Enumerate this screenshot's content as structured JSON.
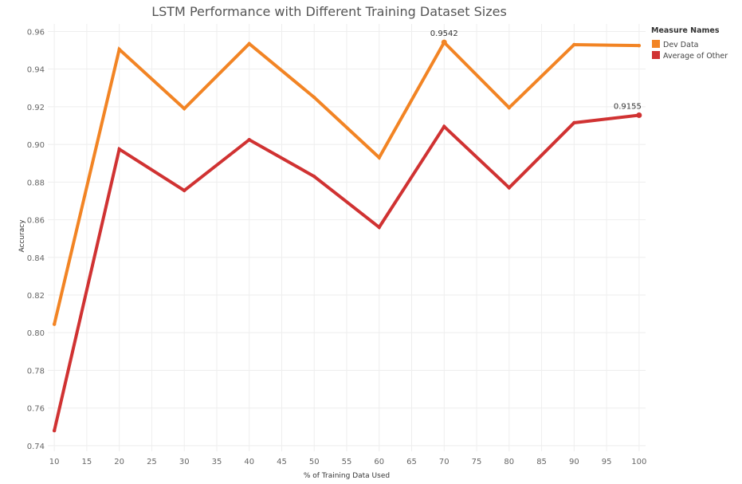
{
  "chart_data": {
    "type": "line",
    "title": "LSTM Performance with Different Training Dataset Sizes",
    "xlabel": "% of Training Data Used",
    "ylabel": "Accuracy",
    "x": [
      10,
      20,
      30,
      40,
      50,
      60,
      70,
      80,
      90,
      100
    ],
    "x_ticks": [
      10,
      15,
      20,
      25,
      30,
      35,
      40,
      45,
      50,
      55,
      60,
      65,
      70,
      75,
      80,
      85,
      90,
      95,
      100
    ],
    "xlim": [
      9,
      101
    ],
    "y_ticks": [
      "0.74",
      "0.76",
      "0.78",
      "0.80",
      "0.82",
      "0.84",
      "0.86",
      "0.88",
      "0.90",
      "0.92",
      "0.94",
      "0.96"
    ],
    "ylim": [
      0.737,
      0.964
    ],
    "grid": true,
    "legend": {
      "title": "Measure Names",
      "placement": "top-right",
      "entries": [
        "Dev Data",
        "Average of Other"
      ]
    },
    "series": [
      {
        "name": "Dev Data",
        "color": "#f28424",
        "values": [
          0.8045,
          0.9505,
          0.919,
          0.9535,
          0.925,
          0.893,
          0.9542,
          0.9195,
          0.953,
          0.9525
        ]
      },
      {
        "name": "Average of Other",
        "color": "#d03232",
        "values": [
          0.748,
          0.8975,
          0.8755,
          0.9025,
          0.883,
          0.856,
          0.9095,
          0.877,
          0.9115,
          0.9155
        ]
      }
    ],
    "annotations": [
      {
        "series": 0,
        "index": 6,
        "text": "0.9542"
      },
      {
        "series": 1,
        "index": 9,
        "text": "0.9155"
      }
    ]
  }
}
